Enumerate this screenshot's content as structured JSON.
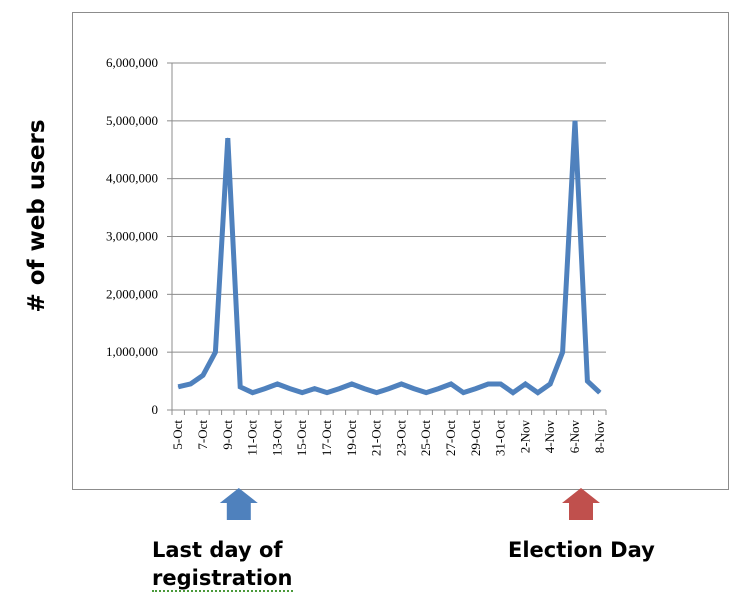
{
  "chart_data": {
    "type": "line",
    "title": "",
    "xlabel": "",
    "ylabel": "# of web users",
    "ylim": [
      0,
      6000000
    ],
    "yticks": [
      0,
      1000000,
      2000000,
      3000000,
      4000000,
      5000000,
      6000000
    ],
    "ytick_labels": [
      "0",
      "1,000,000",
      "2,000,000",
      "3,000,000",
      "4,000,000",
      "5,000,000",
      "6,000,000"
    ],
    "categories": [
      "5-Oct",
      "6-Oct",
      "7-Oct",
      "8-Oct",
      "9-Oct",
      "10-Oct",
      "11-Oct",
      "12-Oct",
      "13-Oct",
      "14-Oct",
      "15-Oct",
      "16-Oct",
      "17-Oct",
      "18-Oct",
      "19-Oct",
      "20-Oct",
      "21-Oct",
      "22-Oct",
      "23-Oct",
      "24-Oct",
      "25-Oct",
      "26-Oct",
      "27-Oct",
      "28-Oct",
      "29-Oct",
      "30-Oct",
      "31-Oct",
      "1-Nov",
      "2-Nov",
      "3-Nov",
      "4-Nov",
      "5-Nov",
      "6-Nov",
      "7-Nov",
      "8-Nov"
    ],
    "xtick_labels": [
      "5-Oct",
      "7-Oct",
      "9-Oct",
      "11-Oct",
      "13-Oct",
      "15-Oct",
      "17-Oct",
      "19-Oct",
      "21-Oct",
      "23-Oct",
      "25-Oct",
      "27-Oct",
      "29-Oct",
      "31-Oct",
      "2-Nov",
      "4-Nov",
      "6-Nov",
      "8-Nov"
    ],
    "series": [
      {
        "values": [
          400000,
          450000,
          600000,
          1000000,
          4700000,
          400000,
          300000,
          370000,
          450000,
          370000,
          300000,
          370000,
          300000,
          370000,
          450000,
          370000,
          300000,
          370000,
          450000,
          370000,
          300000,
          370000,
          450000,
          300000,
          370000,
          450000,
          450000,
          300000,
          450000,
          300000,
          450000,
          1000000,
          5000000,
          500000,
          300000
        ]
      }
    ],
    "grid": true,
    "line_color": "#4f81bd"
  },
  "annotations": {
    "registration": {
      "label_line1": "Last day of",
      "label_line2": "registration",
      "category": "9-Oct",
      "arrow_color": "#4f81bd"
    },
    "election": {
      "label": "Election Day",
      "category": "6-Nov",
      "arrow_color": "#c0504d"
    }
  }
}
